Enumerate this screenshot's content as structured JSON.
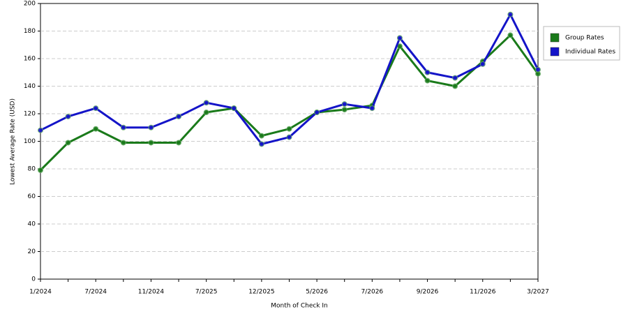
{
  "chart_data": {
    "type": "line",
    "xlabel": "Month of Check In",
    "ylabel": "Lowest Average Rate (USD)",
    "categories": [
      "1/2024",
      null,
      "7/2024",
      null,
      "11/2024",
      null,
      "7/2025",
      null,
      "12/2025",
      null,
      "5/2026",
      null,
      "7/2026",
      null,
      "9/2026",
      null,
      "11/2026",
      null,
      "3/2027"
    ],
    "series": [
      {
        "name": "Group Rates",
        "color": "#1a7a1a",
        "values": [
          79,
          99,
          109,
          99,
          99,
          99,
          121,
          124,
          104,
          109,
          121,
          123,
          126,
          169,
          144,
          140,
          158,
          177,
          149
        ]
      },
      {
        "name": "Individual Rates",
        "color": "#1414c8",
        "values": [
          108,
          118,
          124,
          110,
          110,
          118,
          128,
          124,
          98,
          103,
          121,
          127,
          124,
          175,
          150,
          146,
          156,
          192,
          152
        ]
      }
    ],
    "ylim": [
      0,
      200
    ],
    "yticks": [
      0,
      20,
      40,
      60,
      80,
      100,
      120,
      140,
      160,
      180,
      200
    ],
    "grid": true,
    "legend": "right"
  }
}
